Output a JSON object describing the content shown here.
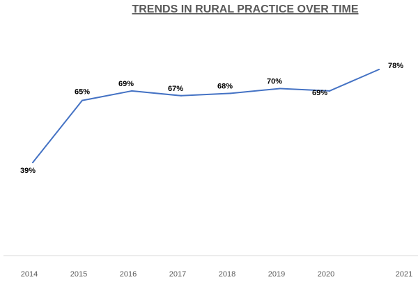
{
  "chart_data": {
    "type": "line",
    "title": "TRENDS IN RURAL PRACTICE OVER TIME",
    "xlabel": "",
    "ylabel": "",
    "categories": [
      "2014",
      "2015",
      "2016",
      "2017",
      "2018",
      "2019",
      "2020",
      "2021"
    ],
    "series": [
      {
        "values": [
          39,
          65,
          69,
          67,
          68,
          70,
          69,
          78
        ],
        "labels": [
          "39%",
          "65%",
          "69%",
          "67%",
          "68%",
          "70%",
          "69%",
          "78%"
        ],
        "color": "#4472C4"
      }
    ],
    "ylim": [
      0,
      92
    ],
    "grid": false,
    "legend": "none"
  }
}
